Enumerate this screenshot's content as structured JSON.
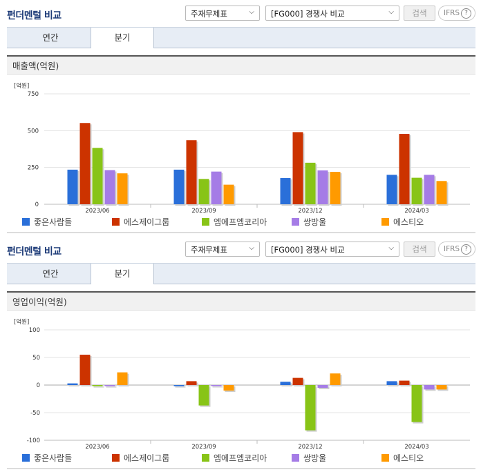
{
  "section_title": "펀더멘털 비교",
  "select1": "주재무제표",
  "select2": "[FG000] 경쟁사 비교",
  "search_label": "검색",
  "ifrs_label": "IFRS",
  "help_symbol": "?",
  "tabs": [
    "연간",
    "분기"
  ],
  "active_tab": "분기",
  "colors": {
    "series": [
      "#2a6fd9",
      "#cc3300",
      "#88c417",
      "#a57ce6",
      "#ff9a00"
    ],
    "accent": "#1d3b78"
  },
  "chart_data": [
    {
      "type": "bar",
      "title": "매출액(억원)",
      "unit": "[억원]",
      "categories": [
        "2023/06",
        "2023/09",
        "2023/12",
        "2024/03"
      ],
      "ylim": [
        0,
        750
      ],
      "yticks": [
        0,
        250,
        500,
        750
      ],
      "ytick_labels": [
        "0",
        "250",
        "500",
        "750"
      ],
      "grid": true,
      "legend_position": "bottom",
      "series": [
        {
          "name": "좋은사람들",
          "values": [
            235,
            235,
            178,
            200
          ]
        },
        {
          "name": "에스제이그룹",
          "values": [
            552,
            435,
            490,
            478
          ]
        },
        {
          "name": "엠에프엠코리아",
          "values": [
            383,
            172,
            282,
            180
          ]
        },
        {
          "name": "쌍방울",
          "values": [
            232,
            222,
            230,
            200
          ]
        },
        {
          "name": "에스티오",
          "values": [
            210,
            133,
            220,
            158
          ]
        }
      ]
    },
    {
      "type": "bar",
      "title": "영업이익(억원)",
      "unit": "[억원]",
      "categories": [
        "2023/06",
        "2023/09",
        "2023/12",
        "2024/03"
      ],
      "ylim": [
        -100,
        100
      ],
      "yticks": [
        -100,
        -50,
        0,
        50,
        100
      ],
      "ytick_labels": [
        "-100",
        "-50",
        "0",
        "50",
        "100"
      ],
      "grid": true,
      "legend_position": "bottom",
      "series": [
        {
          "name": "좋은사람들",
          "values": [
            3,
            -2,
            6,
            7
          ]
        },
        {
          "name": "에스제이그룹",
          "values": [
            55,
            7,
            13,
            8
          ]
        },
        {
          "name": "엠에프엠코리아",
          "values": [
            -2,
            -37,
            -82,
            -67
          ]
        },
        {
          "name": "쌍방울",
          "values": [
            -2,
            0,
            -5,
            -8
          ]
        },
        {
          "name": "에스티오",
          "values": [
            23,
            -10,
            21,
            -8
          ]
        }
      ]
    }
  ]
}
